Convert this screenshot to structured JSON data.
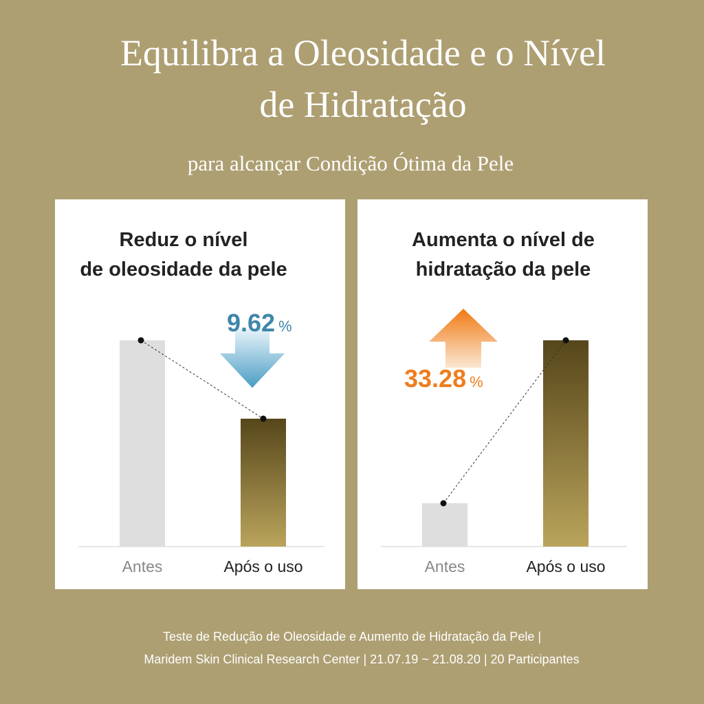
{
  "header": {
    "title_lines": [
      "Equilibra a Oleosidade e o Nível",
      "de Hidratação"
    ],
    "subtitle": "para alcançar Condição Ótima da Pele"
  },
  "chart_data": [
    {
      "type": "bar",
      "title": [
        "Reduz o nível",
        "de oleosidade da pele"
      ],
      "categories": [
        "Antes",
        "Após o uso"
      ],
      "values": [
        100,
        62
      ],
      "colors": [
        "#dedede",
        [
          "#56461a",
          "#baa45c"
        ]
      ],
      "ylim": [
        0,
        100
      ],
      "annotation": {
        "value": 9.62,
        "unit": "%",
        "direction": "down",
        "color": "#3f86aa"
      }
    },
    {
      "type": "bar",
      "title": [
        "Aumenta o nível de",
        "hidratação da pele"
      ],
      "categories": [
        "Antes",
        "Após o uso"
      ],
      "values": [
        21,
        100
      ],
      "colors": [
        "#dedede",
        [
          "#56461a",
          "#baa45c"
        ]
      ],
      "ylim": [
        0,
        100
      ],
      "annotation": {
        "value": 33.28,
        "unit": "%",
        "direction": "up",
        "color": "#ee7d1f"
      }
    }
  ],
  "footer": [
    "Teste de Redução de Oleosidade e Aumento de Hidratação da Pele |",
    "Maridem Skin Clinical Research Center | 21.07.19 ~ 21.08.20 | 20 Participantes"
  ]
}
